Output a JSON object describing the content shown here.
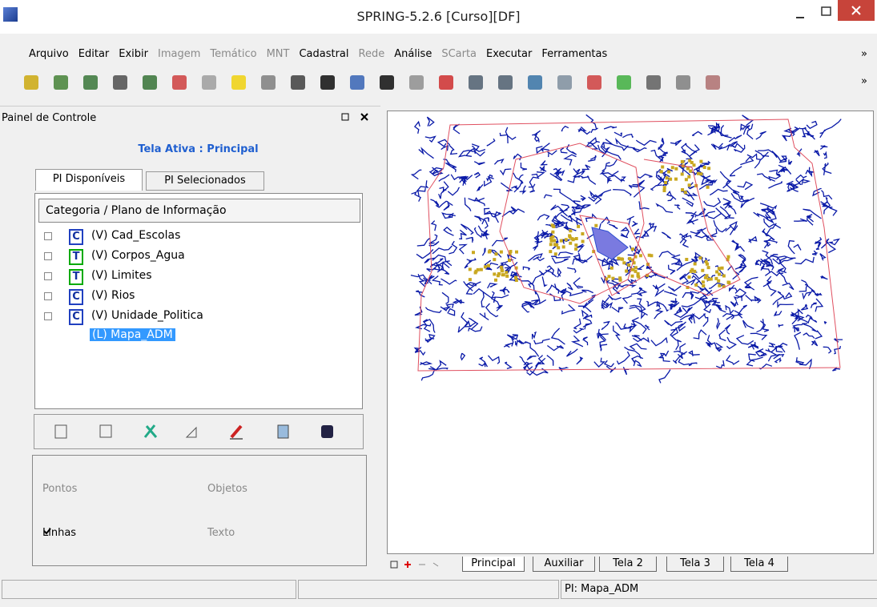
{
  "window": {
    "title": "SPRING-5.2.6 [Curso][DF]"
  },
  "menu": {
    "items": [
      {
        "label": "Arquivo",
        "enabled": true
      },
      {
        "label": "Editar",
        "enabled": true
      },
      {
        "label": "Exibir",
        "enabled": true
      },
      {
        "label": "Imagem",
        "enabled": false
      },
      {
        "label": "Temático",
        "enabled": false
      },
      {
        "label": "MNT",
        "enabled": false
      },
      {
        "label": "Cadastral",
        "enabled": true
      },
      {
        "label": "Rede",
        "enabled": false
      },
      {
        "label": "Análise",
        "enabled": true
      },
      {
        "label": "SCarta",
        "enabled": false
      },
      {
        "label": "Executar",
        "enabled": true
      },
      {
        "label": "Ferramentas",
        "enabled": true
      }
    ],
    "overflow": "»"
  },
  "toolbar": {
    "overflow": "»"
  },
  "panel": {
    "title": "Painel de Controle",
    "active_screen": "Tela Ativa : Principal",
    "tabs": [
      "PI Disponíveis",
      "PI Selecionados"
    ],
    "tree": {
      "header": "Categoria / Plano de Informação",
      "items": [
        {
          "icon": "C",
          "label": "(V) Cad_Escolas"
        },
        {
          "icon": "T",
          "label": "(V) Corpos_Agua"
        },
        {
          "icon": "T",
          "label": "(V) Limites"
        },
        {
          "icon": "C",
          "label": "(V) Rios"
        },
        {
          "icon": "C",
          "label": "(V) Unidade_Politica"
        }
      ],
      "child": {
        "label": "(L) Mapa_ADM",
        "selected": true
      }
    },
    "checkboxes": [
      {
        "label": "Pontos",
        "checked": false,
        "enabled": false
      },
      {
        "label": "Objetos",
        "checked": false,
        "enabled": false
      },
      {
        "label": "Linhas",
        "checked": true,
        "enabled": true
      },
      {
        "label": "Texto",
        "checked": false,
        "enabled": false
      }
    ]
  },
  "view_tabs": [
    "Principal",
    "Auxiliar",
    "Tela 2",
    "Tela 3",
    "Tela 4"
  ],
  "status": {
    "pi": "PI: Mapa_ADM"
  }
}
